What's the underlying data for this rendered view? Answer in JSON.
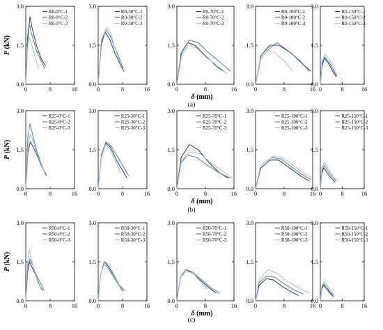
{
  "figure": {
    "ylabel_symbol": "P",
    "ylabel_unit": " (kN)",
    "xlabel_symbol": "δ",
    "xlabel_unit": " (mm)",
    "yticks": [
      "0.0",
      "1.5",
      "3.0"
    ],
    "xticks": [
      "0",
      "8",
      "16"
    ],
    "colors": [
      "#1f3a5a",
      "#4f7fa8",
      "#9fc0dc"
    ]
  },
  "rows": [
    {
      "label": "(a)",
      "prefix": "R0"
    },
    {
      "label": "(b)",
      "prefix": "R25"
    },
    {
      "label": "(c)",
      "prefix": "R50"
    }
  ],
  "chart_data": [
    {
      "type": "line",
      "row": 0,
      "col": 0,
      "xlim": [
        0,
        16
      ],
      "ylim": [
        0,
        3
      ],
      "series": [
        {
          "name": "R0-0°C-1",
          "x": [
            0,
            0.6,
            1.4,
            2.0,
            3.5,
            5.0,
            6.5
          ],
          "y": [
            0,
            1.8,
            2.6,
            2.2,
            1.5,
            1.0,
            0.7
          ]
        },
        {
          "name": "R0-0°C-2",
          "x": [
            0,
            0.6,
            1.2,
            2.0,
            3.5,
            5.0,
            6.2
          ],
          "y": [
            0,
            1.6,
            2.3,
            1.9,
            1.3,
            0.9,
            0.6
          ]
        },
        {
          "name": "R0-0°C-3",
          "x": [
            0,
            0.5,
            1.1,
            2.0,
            3.0,
            4.2
          ],
          "y": [
            0,
            1.3,
            1.8,
            1.5,
            1.1,
            0.6
          ]
        }
      ]
    },
    {
      "type": "line",
      "row": 0,
      "col": 1,
      "xlim": [
        0,
        16
      ],
      "ylim": [
        0,
        3
      ],
      "series": [
        {
          "name": "R0-30°C-1",
          "x": [
            0,
            1.0,
            2.2,
            3.5,
            5.5,
            7.5,
            8.5
          ],
          "y": [
            0,
            1.5,
            2.0,
            1.8,
            1.2,
            0.7,
            0.5
          ]
        },
        {
          "name": "R0-30°C-2",
          "x": [
            0,
            1.0,
            2.5,
            3.8,
            5.5,
            7.0,
            8.2
          ],
          "y": [
            0,
            1.6,
            2.1,
            1.9,
            1.4,
            1.0,
            0.6
          ]
        },
        {
          "name": "R0-30°C-3",
          "x": [
            0,
            1.0,
            2.8,
            4.0,
            5.5,
            7.0
          ],
          "y": [
            0,
            1.7,
            2.2,
            2.0,
            1.4,
            0.9
          ]
        }
      ]
    },
    {
      "type": "line",
      "row": 0,
      "col": 2,
      "xlim": [
        0,
        16
      ],
      "ylim": [
        0,
        3
      ],
      "series": [
        {
          "name": "R0-70°C-1",
          "x": [
            0,
            1.2,
            3.0,
            5.0,
            8.0,
            11.0,
            13.0
          ],
          "y": [
            0,
            1.2,
            1.6,
            1.5,
            1.1,
            0.7,
            0.5
          ]
        },
        {
          "name": "R0-70°C-2",
          "x": [
            0,
            1.3,
            3.5,
            6.0,
            9.0,
            12.5,
            15.0
          ],
          "y": [
            0,
            1.2,
            1.7,
            1.6,
            1.2,
            0.8,
            0.5
          ]
        },
        {
          "name": "R0-70°C-3",
          "x": [
            0,
            1.3,
            3.2,
            5.5,
            8.5,
            11.5,
            14.0
          ],
          "y": [
            0,
            1.1,
            1.5,
            1.4,
            1.0,
            0.7,
            0.4
          ]
        }
      ]
    },
    {
      "type": "line",
      "row": 0,
      "col": 3,
      "xlim": [
        0,
        16
      ],
      "ylim": [
        0,
        3
      ],
      "series": [
        {
          "name": "R0-100°C-1",
          "x": [
            0,
            1.5,
            4.0,
            6.5,
            10.0,
            13.0,
            15.5
          ],
          "y": [
            0,
            1.1,
            1.5,
            1.5,
            1.2,
            0.8,
            0.5
          ]
        },
        {
          "name": "R0-100°C-2",
          "x": [
            0,
            1.5,
            4.0,
            6.0,
            9.0,
            12.5,
            15.0
          ],
          "y": [
            0,
            1.0,
            1.4,
            1.6,
            1.3,
            0.9,
            0.5
          ]
        },
        {
          "name": "R0-100°C-3",
          "x": [
            0,
            1.4,
            3.5,
            5.5,
            8.0,
            10.5
          ],
          "y": [
            0,
            1.0,
            1.3,
            1.2,
            0.9,
            0.5
          ]
        }
      ]
    },
    {
      "type": "line",
      "row": 0,
      "col": 4,
      "xlim": [
        0,
        16
      ],
      "ylim": [
        0,
        3
      ],
      "series": [
        {
          "name": "R0-150°C-1",
          "x": [
            0,
            0.6,
            1.5,
            3.0,
            4.5,
            5.8
          ],
          "y": [
            0,
            0.7,
            1.0,
            0.8,
            0.5,
            0.3
          ]
        },
        {
          "name": "R0-150°C-2",
          "x": [
            0,
            0.6,
            1.6,
            3.2,
            4.8,
            6.0
          ],
          "y": [
            0,
            0.8,
            1.05,
            0.85,
            0.55,
            0.3
          ]
        },
        {
          "name": "R0-150°C-3",
          "x": [
            0,
            0.6,
            1.7,
            3.4,
            5.0,
            6.2
          ],
          "y": [
            0,
            0.9,
            1.15,
            0.95,
            0.6,
            0.35
          ]
        }
      ]
    },
    {
      "type": "line",
      "row": 1,
      "col": 0,
      "xlim": [
        0,
        16
      ],
      "ylim": [
        0,
        3
      ],
      "series": [
        {
          "name": "R25-0°C-1",
          "x": [
            0,
            0.7,
            1.5,
            2.5,
            4.0,
            5.5,
            6.8
          ],
          "y": [
            0,
            1.4,
            1.8,
            1.6,
            1.2,
            0.8,
            0.5
          ]
        },
        {
          "name": "R25-0°C-2",
          "x": [
            0,
            0.7,
            1.4,
            2.2,
            3.5,
            5.0,
            6.3
          ],
          "y": [
            0,
            2.0,
            2.5,
            2.1,
            1.5,
            1.0,
            0.6
          ]
        },
        {
          "name": "R25-0°C-3",
          "x": [
            0,
            0.7,
            1.5,
            2.5,
            3.8,
            5.3,
            6.5
          ],
          "y": [
            0,
            1.6,
            2.1,
            1.8,
            1.3,
            0.9,
            0.5
          ]
        }
      ]
    },
    {
      "type": "line",
      "row": 1,
      "col": 1,
      "xlim": [
        0,
        16
      ],
      "ylim": [
        0,
        3
      ],
      "series": [
        {
          "name": "R25-30°C-1",
          "x": [
            0,
            1.0,
            2.5,
            4.0,
            6.0,
            8.0,
            9.5
          ],
          "y": [
            0,
            1.2,
            1.75,
            1.6,
            1.1,
            0.7,
            0.4
          ]
        },
        {
          "name": "R25-30°C-2",
          "x": [
            0,
            1.0,
            2.5,
            4.2,
            6.5,
            8.5,
            10.0
          ],
          "y": [
            0,
            1.3,
            1.8,
            1.65,
            1.2,
            0.8,
            0.5
          ]
        },
        {
          "name": "R25-30°C-3",
          "x": [
            0,
            1.0,
            2.3,
            3.8,
            5.5,
            7.5
          ],
          "y": [
            0,
            1.2,
            1.7,
            1.55,
            1.1,
            0.6
          ]
        }
      ]
    },
    {
      "type": "line",
      "row": 1,
      "col": 2,
      "xlim": [
        0,
        16
      ],
      "ylim": [
        0,
        3
      ],
      "series": [
        {
          "name": "R25-70°C-1",
          "x": [
            0,
            1.2,
            3.5,
            6.0,
            9.0,
            12.0,
            14.5
          ],
          "y": [
            0,
            1.2,
            1.7,
            1.5,
            1.0,
            0.6,
            0.4
          ]
        },
        {
          "name": "R25-70°C-2",
          "x": [
            0,
            1.2,
            3.0,
            5.5,
            8.5,
            12.0,
            15.0
          ],
          "y": [
            0,
            1.0,
            1.3,
            1.2,
            0.9,
            0.6,
            0.4
          ]
        },
        {
          "name": "R25-70°C-3",
          "x": [
            0,
            1.3,
            3.8,
            6.5,
            9.5,
            12.5,
            15.5
          ],
          "y": [
            0,
            1.1,
            1.4,
            1.35,
            1.0,
            0.7,
            0.4
          ]
        }
      ]
    },
    {
      "type": "line",
      "row": 1,
      "col": 3,
      "xlim": [
        0,
        16
      ],
      "ylim": [
        0,
        3
      ],
      "series": [
        {
          "name": "R25-100°C-1",
          "x": [
            0,
            1.5,
            4.0,
            6.5,
            9.5,
            12.5,
            15.0
          ],
          "y": [
            0,
            0.8,
            1.1,
            1.1,
            0.8,
            0.5,
            0.3
          ]
        },
        {
          "name": "R25-100°C-2",
          "x": [
            0,
            1.5,
            4.5,
            7.0,
            10.0,
            13.0,
            15.5
          ],
          "y": [
            0,
            0.9,
            1.2,
            1.15,
            0.85,
            0.55,
            0.35
          ]
        },
        {
          "name": "R25-100°C-3",
          "x": [
            0,
            1.5,
            5.0,
            7.5,
            10.5,
            13.5,
            16.0
          ],
          "y": [
            0,
            0.9,
            1.25,
            1.2,
            0.9,
            0.6,
            0.4
          ]
        }
      ]
    },
    {
      "type": "line",
      "row": 1,
      "col": 4,
      "xlim": [
        0,
        16
      ],
      "ylim": [
        0,
        3
      ],
      "series": [
        {
          "name": "R25-150°C-1",
          "x": [
            0,
            0.5,
            1.3,
            2.5,
            4.0,
            5.5
          ],
          "y": [
            0,
            0.6,
            0.8,
            0.6,
            0.4,
            0.25
          ]
        },
        {
          "name": "R25-150°C-2",
          "x": [
            0,
            0.5,
            1.4,
            2.7,
            4.3,
            5.8
          ],
          "y": [
            0,
            0.7,
            0.9,
            0.7,
            0.45,
            0.3
          ]
        },
        {
          "name": "R25-150°C-3",
          "x": [
            0,
            0.5,
            1.5,
            2.8,
            4.5,
            6.0
          ],
          "y": [
            0,
            0.8,
            1.0,
            0.8,
            0.5,
            0.3
          ]
        }
      ]
    },
    {
      "type": "line",
      "row": 2,
      "col": 0,
      "xlim": [
        0,
        16
      ],
      "ylim": [
        0,
        3
      ],
      "series": [
        {
          "name": "R50-0°C-1",
          "x": [
            0,
            0.6,
            1.2,
            2.0,
            3.2,
            4.5,
            5.5
          ],
          "y": [
            0,
            1.1,
            1.5,
            1.3,
            1.0,
            0.6,
            0.4
          ]
        },
        {
          "name": "R50-0°C-2",
          "x": [
            0,
            0.6,
            1.3,
            2.2,
            3.4,
            4.8,
            6.0
          ],
          "y": [
            0,
            1.3,
            1.6,
            1.4,
            1.0,
            0.7,
            0.4
          ]
        },
        {
          "name": "R50-0°C-3",
          "x": [
            0,
            0.6,
            1.1,
            1.8,
            3.0,
            4.0,
            5.0
          ],
          "y": [
            0,
            1.5,
            2.0,
            1.6,
            1.1,
            0.7,
            0.5
          ]
        }
      ]
    },
    {
      "type": "line",
      "row": 2,
      "col": 1,
      "xlim": [
        0,
        16
      ],
      "ylim": [
        0,
        3
      ],
      "series": [
        {
          "name": "R50-30°C-1",
          "x": [
            0,
            0.8,
            2.0,
            3.2,
            5.0,
            7.0,
            8.5
          ],
          "y": [
            0,
            1.0,
            1.5,
            1.35,
            1.0,
            0.6,
            0.4
          ]
        },
        {
          "name": "R50-30°C-2",
          "x": [
            0,
            0.8,
            1.8,
            3.0,
            4.8,
            6.8,
            8.0
          ],
          "y": [
            0,
            1.0,
            1.4,
            1.3,
            0.95,
            0.6,
            0.35
          ]
        },
        {
          "name": "R50-30°C-3",
          "x": [
            0,
            0.8,
            2.2,
            3.5,
            5.2,
            7.0,
            8.2
          ],
          "y": [
            0,
            1.0,
            1.5,
            1.4,
            1.0,
            0.6,
            0.4
          ]
        }
      ]
    },
    {
      "type": "line",
      "row": 2,
      "col": 2,
      "xlim": [
        0,
        16
      ],
      "ylim": [
        0,
        3
      ],
      "series": [
        {
          "name": "R50-70°C-1",
          "x": [
            0,
            1.0,
            2.5,
            4.0,
            6.5,
            9.0,
            11.0
          ],
          "y": [
            0,
            0.9,
            1.2,
            1.1,
            0.8,
            0.5,
            0.3
          ]
        },
        {
          "name": "R50-70°C-2",
          "x": [
            0,
            1.0,
            2.5,
            4.5,
            7.0,
            9.5,
            12.0
          ],
          "y": [
            0,
            0.9,
            1.2,
            1.1,
            0.8,
            0.5,
            0.3
          ]
        },
        {
          "name": "R50-70°C-3",
          "x": [
            0,
            1.0,
            2.8,
            4.5,
            6.5,
            8.5
          ],
          "y": [
            0,
            0.9,
            1.15,
            1.05,
            0.75,
            0.45
          ]
        }
      ]
    },
    {
      "type": "line",
      "row": 2,
      "col": 3,
      "xlim": [
        0,
        16
      ],
      "ylim": [
        0,
        3
      ],
      "series": [
        {
          "name": "R50-100°C-1",
          "x": [
            0,
            1.0,
            3.0,
            5.0,
            7.5,
            10.0,
            12.0
          ],
          "y": [
            0,
            0.6,
            0.85,
            0.8,
            0.55,
            0.35,
            0.2
          ]
        },
        {
          "name": "R50-100°C-2",
          "x": [
            0,
            1.0,
            3.0,
            5.5,
            8.0,
            11.0,
            13.5
          ],
          "y": [
            0,
            0.7,
            0.95,
            0.9,
            0.65,
            0.4,
            0.25
          ]
        },
        {
          "name": "R50-100°C-3",
          "x": [
            0,
            1.0,
            3.5,
            6.0,
            9.0,
            12.0,
            15.0
          ],
          "y": [
            0,
            0.8,
            1.2,
            1.05,
            0.75,
            0.5,
            0.3
          ]
        }
      ]
    },
    {
      "type": "line",
      "row": 2,
      "col": 4,
      "xlim": [
        0,
        16
      ],
      "ylim": [
        0,
        3
      ],
      "series": [
        {
          "name": "R50-150°C-1",
          "x": [
            0,
            0.5,
            1.2,
            2.3,
            3.5,
            4.8
          ],
          "y": [
            0,
            0.45,
            0.6,
            0.45,
            0.3,
            0.15
          ]
        },
        {
          "name": "R50-150°C-2",
          "x": [
            0,
            0.5,
            1.3,
            2.5,
            3.8,
            5.0
          ],
          "y": [
            0,
            0.5,
            0.65,
            0.5,
            0.3,
            0.2
          ]
        },
        {
          "name": "R50-150°C-3",
          "x": [
            0,
            0.5,
            1.3,
            2.6,
            4.0,
            5.2
          ],
          "y": [
            0,
            0.55,
            0.75,
            0.55,
            0.35,
            0.2
          ]
        }
      ]
    }
  ]
}
